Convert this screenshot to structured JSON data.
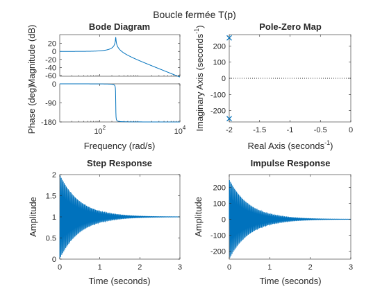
{
  "figure": {
    "title": "Boucle fermée T(p)",
    "trace_color": "#0072bd",
    "axis_color": "#262626",
    "background": "#ffffff"
  },
  "chart_data": [
    {
      "id": "bode",
      "type": "line",
      "title": "Bode Diagram",
      "xlabel": "Frequency  (rad/s)",
      "xscale": "log",
      "xlim": [
        10,
        10000
      ],
      "xticks": [
        {
          "value": 100,
          "base": "10",
          "exp": "2"
        },
        {
          "value": 10000,
          "base": "10",
          "exp": "4"
        }
      ],
      "natural_frequency": 250,
      "damping": 0.008,
      "magnitude": {
        "ylabel": "Magnitude (dB)",
        "ylim": [
          -62,
          42
        ],
        "yticks": [
          20,
          0,
          -20,
          -40,
          -60
        ],
        "ytick_labels": [
          "20",
          "0",
          "-20",
          "-40",
          "-60"
        ],
        "peak_db": 35.9
      },
      "phase": {
        "ylabel": "Phase (deg)",
        "ylim": [
          -180,
          0
        ],
        "yticks": [
          0,
          -90,
          -180
        ],
        "ytick_labels": [
          "0",
          "-90",
          "-180"
        ]
      }
    },
    {
      "id": "pzmap",
      "type": "scatter",
      "title": "Pole-Zero Map",
      "xlabel": "Real Axis (seconds",
      "ylabel": "Imaginary Axis (seconds",
      "unit_exponent": "-1",
      "xlim": [
        -2,
        0
      ],
      "ylim": [
        -270,
        270
      ],
      "xticks": [
        -2,
        -1.5,
        -1,
        -0.5,
        0
      ],
      "xtick_labels": [
        "-2",
        "-1.5",
        "-1",
        "-0.5",
        "0"
      ],
      "yticks": [
        200,
        100,
        0,
        -100,
        -200
      ],
      "ytick_labels": [
        "200",
        "100",
        "0",
        "-100",
        "-200"
      ],
      "poles": [
        {
          "re": -2,
          "im": 250
        },
        {
          "re": -2,
          "im": -250
        }
      ],
      "zeros": []
    },
    {
      "id": "step",
      "type": "line",
      "title": "Step Response",
      "xlabel": "Time (seconds)",
      "ylabel": "Amplitude",
      "xlim": [
        0,
        3
      ],
      "ylim": [
        0,
        2
      ],
      "xticks": [
        0,
        1,
        2,
        3
      ],
      "xtick_labels": [
        "0",
        "1",
        "2",
        "3"
      ],
      "yticks": [
        0,
        0.5,
        1,
        1.5,
        2
      ],
      "ytick_labels": [
        "0",
        "0.5",
        "1",
        "1.5",
        "2"
      ],
      "final_value": 1,
      "initial_overshoot": 1,
      "decay_rate": 2,
      "omega": 250
    },
    {
      "id": "impulse",
      "type": "line",
      "title": "Impulse Response",
      "xlabel": "Time (seconds)",
      "ylabel": "Amplitude",
      "xlim": [
        0,
        3
      ],
      "ylim": [
        -250,
        280
      ],
      "xticks": [
        0,
        1,
        2,
        3
      ],
      "xtick_labels": [
        "0",
        "1",
        "2",
        "3"
      ],
      "yticks": [
        200,
        100,
        0,
        -100,
        -200
      ],
      "ytick_labels": [
        "200",
        "100",
        "0",
        "-100",
        "-200"
      ],
      "initial_amplitude": 250,
      "decay_rate": 2,
      "omega": 250
    }
  ]
}
